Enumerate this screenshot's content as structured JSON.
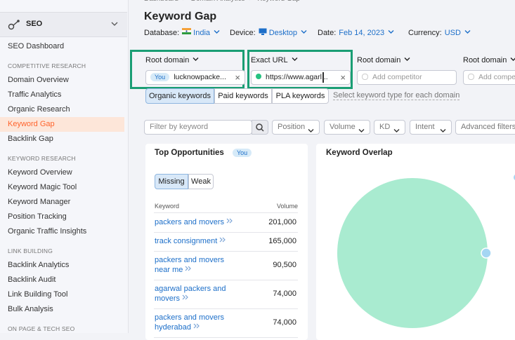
{
  "breadcrumb": [
    "Dashboard",
    "Domain Analytics",
    "Keyword Gap"
  ],
  "sidebar": {
    "section": "SEO",
    "dashboard": "SEO Dashboard",
    "groups": [
      {
        "heading": "COMPETITIVE RESEARCH",
        "items": [
          {
            "label": "Domain Overview"
          },
          {
            "label": "Traffic Analytics"
          },
          {
            "label": "Organic Research"
          },
          {
            "label": "Keyword Gap",
            "active": true
          },
          {
            "label": "Backlink Gap"
          }
        ]
      },
      {
        "heading": "KEYWORD RESEARCH",
        "items": [
          {
            "label": "Keyword Overview"
          },
          {
            "label": "Keyword Magic Tool"
          },
          {
            "label": "Keyword Manager"
          },
          {
            "label": "Position Tracking"
          },
          {
            "label": "Organic Traffic Insights"
          }
        ]
      },
      {
        "heading": "LINK BUILDING",
        "items": [
          {
            "label": "Backlink Analytics"
          },
          {
            "label": "Backlink Audit"
          },
          {
            "label": "Link Building Tool"
          },
          {
            "label": "Bulk Analysis"
          }
        ]
      },
      {
        "heading": "ON PAGE & TECH SEO",
        "items": []
      }
    ]
  },
  "header": {
    "title": "Keyword Gap",
    "settings": [
      {
        "label": "Database:",
        "value": "India"
      },
      {
        "label": "Device:",
        "value": "Desktop"
      },
      {
        "label": "Date:",
        "value": "Feb 14, 2023"
      },
      {
        "label": "Currency:",
        "value": "USD"
      }
    ]
  },
  "domains": [
    {
      "type": "Root domain",
      "badge": "You",
      "value": "lucknowpacke..."
    },
    {
      "type": "Exact URL",
      "value": "https://www.agarl..."
    },
    {
      "type": "Root domain",
      "placeholder": "Add competitor"
    },
    {
      "type": "Root domain",
      "placeholder": "Add competitor"
    }
  ],
  "keyword_types": {
    "options": [
      "Organic keywords",
      "Paid keywords",
      "PLA keywords"
    ],
    "hint": "Select keyword type for each domain"
  },
  "filters": {
    "placeholder": "Filter by keyword",
    "dropdowns": [
      "Position",
      "Volume",
      "KD",
      "Intent",
      "Advanced filters"
    ]
  },
  "opportunities": {
    "title": "Top Opportunities",
    "badge": "You",
    "tabs": [
      "Missing",
      "Weak"
    ],
    "columns": [
      "Keyword",
      "Volume"
    ],
    "rows": [
      [
        "packers and movers",
        "201,000"
      ],
      [
        "track consignment",
        "165,000"
      ],
      [
        "packers and movers near me",
        "90,500"
      ],
      [
        "agarwal packers and movers",
        "74,000"
      ],
      [
        "packers and movers hyderabad",
        "74,000"
      ]
    ]
  },
  "overlap": {
    "title": "Keyword Overlap"
  }
}
